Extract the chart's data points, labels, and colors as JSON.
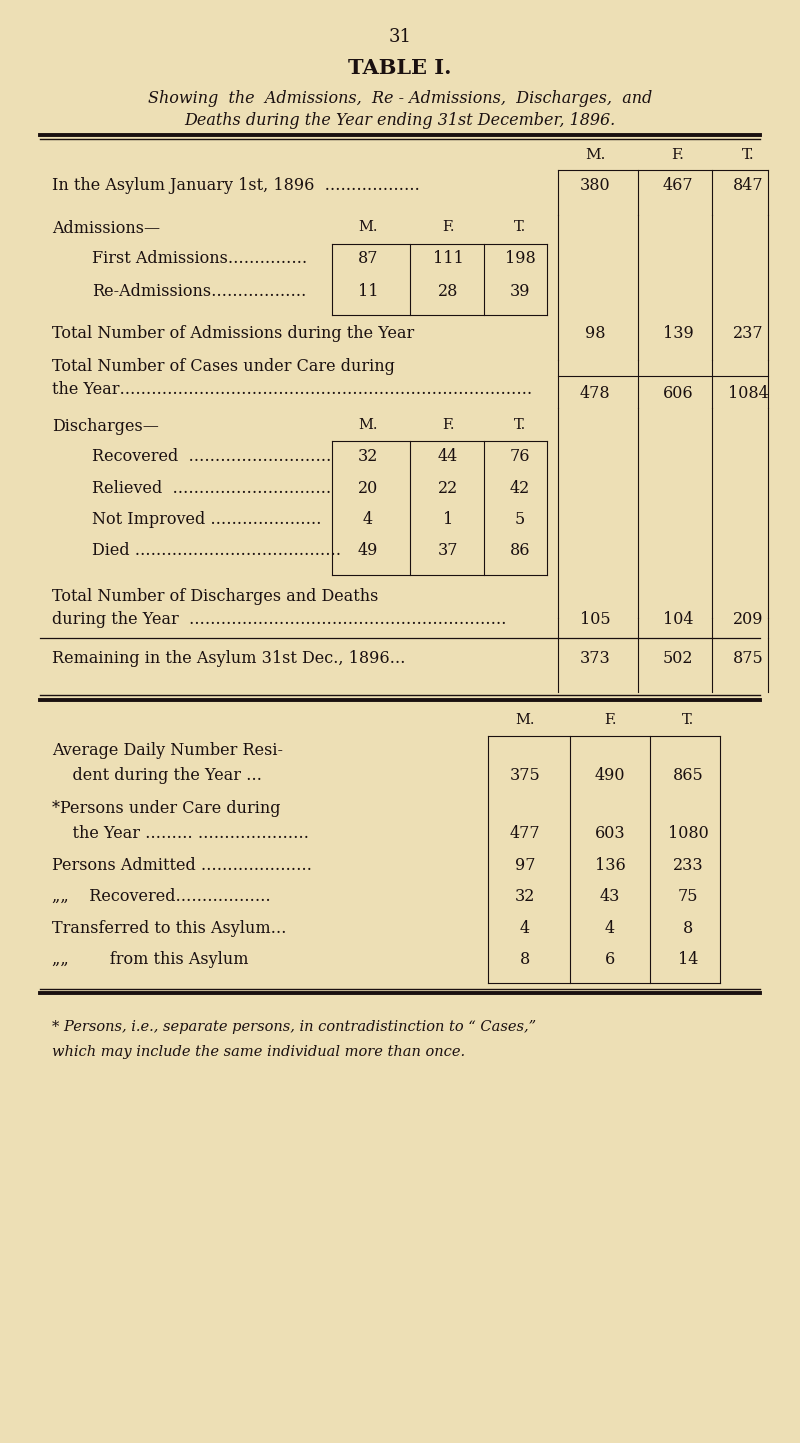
{
  "bg_color": "#eddfb5",
  "text_color": "#1a1010",
  "page_number": "31",
  "title": "TABLE I.",
  "subtitle_line1": "Showing  the  Admissions,  Re - Admissions,  Discharges,  and",
  "subtitle_line2": "Deaths during the Year ending 31st December, 1896.",
  "footnote_line1": "* Persons, i.e., separate persons, in contradistinction to “ Cases,”",
  "footnote_line2": "which may include the same individual more than once."
}
